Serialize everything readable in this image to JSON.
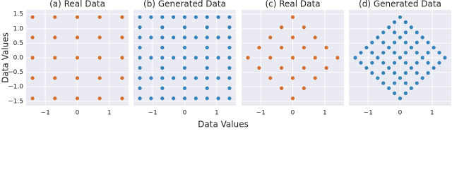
{
  "xlabel": "Data Values",
  "ylabel": "Data Values",
  "chart_data": [
    {
      "type": "scatter",
      "title": "(a) Real Data",
      "color": "#d1601a",
      "show_ytick_labels": true,
      "xlim": [
        -1.6,
        1.6
      ],
      "ylim": [
        -1.65,
        1.65
      ],
      "xticks": [
        {
          "value": -1,
          "label": "−1"
        },
        0,
        1
      ],
      "yticks": [
        {
          "value": -1.5,
          "label": "−1.5"
        },
        {
          "value": -1,
          "label": "−1.0"
        },
        {
          "value": -0.5,
          "label": "−0.5"
        },
        {
          "value": 0,
          "label": "0.0"
        },
        0.5,
        {
          "value": 1,
          "label": "1.0"
        },
        1.5
      ],
      "x": [
        -1.4,
        -0.7,
        0,
        0.7,
        1.4,
        -1.4,
        -0.7,
        0,
        0.7,
        1.4,
        -1.4,
        -0.7,
        0,
        0.7,
        1.4,
        -1.4,
        -0.7,
        0,
        0.7,
        1.4,
        -1.4,
        -0.7,
        0,
        0.7,
        1.4
      ],
      "y": [
        -1.4,
        -1.4,
        -1.4,
        -1.4,
        -1.4,
        -0.7,
        -0.7,
        -0.7,
        -0.7,
        -0.7,
        0,
        0,
        0,
        0,
        0,
        0.7,
        0.7,
        0.7,
        0.7,
        0.7,
        1.4,
        1.4,
        1.4,
        1.4,
        1.4
      ]
    },
    {
      "type": "scatter",
      "title": "(b) Generated Data",
      "color": "#1f77b4",
      "show_ytick_labels": false,
      "xlim": [
        -1.6,
        1.6
      ],
      "ylim": [
        -1.65,
        1.65
      ],
      "xticks": [
        {
          "value": -1,
          "label": "−1"
        },
        0,
        1
      ],
      "yticks": [
        -1.5,
        -1,
        -0.5,
        0,
        0.5,
        1,
        1.5
      ],
      "x": [
        -1.4,
        -0.7,
        0,
        0.7,
        1.4,
        -1.4,
        -0.7,
        0,
        0.7,
        1.4,
        -1.4,
        -0.7,
        0,
        0.7,
        1.4,
        -1.4,
        -0.7,
        0,
        0.7,
        1.4,
        -1.4,
        -0.7,
        0,
        0.7,
        1.4,
        -1.05,
        -0.35,
        0.35,
        1.05,
        -1.05,
        -0.35,
        0.35,
        1.05,
        -1.05,
        -0.35,
        0.35,
        1.05,
        -1.05,
        -0.35,
        0.35,
        1.05,
        -1.05,
        -0.35,
        0.35,
        1.05,
        -1.4,
        -0.7,
        0,
        0.7,
        1.4,
        -1.4,
        -0.7,
        0,
        0.7,
        1.4,
        -1.4,
        -0.7,
        0,
        0.7,
        1.4,
        -1.4,
        -0.7,
        0,
        0.7,
        1.4
      ],
      "y": [
        -1.4,
        -1.4,
        -1.4,
        -1.4,
        -1.4,
        -0.7,
        -0.7,
        -0.7,
        -0.7,
        -0.7,
        0,
        0,
        0,
        0,
        0,
        0.7,
        0.7,
        0.7,
        0.7,
        0.7,
        1.4,
        1.4,
        1.4,
        1.4,
        1.4,
        -1.4,
        -1.4,
        -1.4,
        -1.4,
        -0.7,
        -0.7,
        -0.7,
        -0.7,
        0,
        0,
        0,
        0,
        0.7,
        0.7,
        0.7,
        0.7,
        1.4,
        1.4,
        1.4,
        1.4,
        -1.05,
        -1.05,
        -1.05,
        -1.05,
        -1.05,
        -0.35,
        -0.35,
        -0.35,
        -0.35,
        -0.35,
        0.35,
        0.35,
        0.35,
        0.35,
        0.35,
        1.05,
        1.05,
        1.05,
        1.05,
        1.05
      ]
    },
    {
      "type": "scatter",
      "title": "(c) Real Data",
      "color": "#d1601a",
      "show_ytick_labels": false,
      "xlim": [
        -1.6,
        1.6
      ],
      "ylim": [
        -1.65,
        1.65
      ],
      "xticks": [
        {
          "value": -1,
          "label": "−1"
        },
        0,
        1
      ],
      "yticks": [
        -1.5,
        -1,
        -0.5,
        0,
        0.5,
        1,
        1.5
      ],
      "x": [
        0,
        -0.35,
        -0.7,
        -1.05,
        -1.4,
        0.35,
        0,
        -0.35,
        -0.7,
        -1.05,
        0.7,
        0.35,
        0,
        -0.35,
        -0.7,
        1.05,
        0.7,
        0.35,
        0,
        -0.35,
        1.4,
        1.05,
        0.7,
        0.35,
        0
      ],
      "y": [
        -1.4,
        -1.05,
        -0.7,
        -0.35,
        0,
        -1.05,
        -0.7,
        -0.35,
        0,
        0.35,
        -0.7,
        -0.35,
        0,
        0.35,
        0.7,
        -0.35,
        0,
        0.35,
        0.7,
        1.05,
        0,
        0.35,
        0.7,
        1.05,
        1.4
      ]
    },
    {
      "type": "scatter",
      "title": "(d) Generated Data",
      "color": "#1f77b4",
      "show_ytick_labels": false,
      "xlim": [
        -1.6,
        1.6
      ],
      "ylim": [
        -1.65,
        1.65
      ],
      "xticks": [
        {
          "value": -1,
          "label": "−1"
        },
        0,
        1
      ],
      "yticks": [
        -1.5,
        -1,
        -0.5,
        0,
        0.5,
        1,
        1.5
      ],
      "x": [
        0,
        -0.35,
        -0.7,
        -1.05,
        -1.4,
        0.35,
        0,
        -0.35,
        -0.7,
        -1.05,
        0.7,
        0.35,
        0,
        -0.35,
        -0.7,
        1.05,
        0.7,
        0.35,
        0,
        -0.35,
        1.4,
        1.05,
        0.7,
        0.35,
        0,
        0.175,
        -0.175,
        -0.525,
        -0.875,
        -1.225,
        0.525,
        0.175,
        -0.175,
        -0.525,
        -0.875,
        0.875,
        0.525,
        0.175,
        -0.175,
        -0.525,
        1.225,
        0.875,
        0.525,
        0.175,
        -0.175,
        -0.175,
        0.175,
        0.525,
        0.875,
        1.225,
        -0.525,
        -0.175,
        0.175,
        0.525,
        0.875,
        -0.875,
        -0.525,
        -0.175,
        0.175,
        0.525,
        -1.225,
        -0.875,
        -0.525,
        -0.175,
        0.175
      ],
      "y": [
        -1.4,
        -1.05,
        -0.7,
        -0.35,
        0,
        -1.05,
        -0.7,
        -0.35,
        0,
        0.35,
        -0.7,
        -0.35,
        0,
        0.35,
        0.7,
        -0.35,
        0,
        0.35,
        0.7,
        1.05,
        0,
        0.35,
        0.7,
        1.05,
        1.4,
        -1.225,
        -0.875,
        -0.525,
        -0.175,
        0.175,
        -0.875,
        -0.525,
        -0.175,
        0.175,
        0.525,
        -0.525,
        -0.175,
        0.175,
        0.525,
        0.875,
        -0.175,
        0.175,
        0.525,
        0.875,
        1.225,
        -1.225,
        -0.875,
        -0.525,
        -0.175,
        0.175,
        -0.875,
        -0.525,
        -0.175,
        0.175,
        0.525,
        -0.525,
        -0.175,
        0.175,
        0.525,
        0.875,
        -0.175,
        0.175,
        0.525,
        0.875,
        1.225
      ]
    }
  ]
}
